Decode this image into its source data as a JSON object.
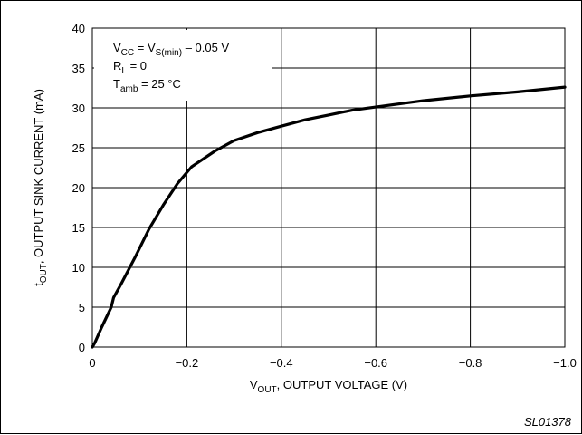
{
  "figure_code": "SL01378",
  "chart_data": {
    "type": "line",
    "xlabel": {
      "main": "V",
      "sub": "OUT",
      "rest": ", OUTPUT VOLTAGE (V)"
    },
    "ylabel": {
      "main": "t",
      "sub": "OUT",
      "rest": ", OUTPUT SINK CURRENT (mA)"
    },
    "xlim": [
      0,
      -1.0
    ],
    "ylim": [
      0,
      40
    ],
    "x_ticks": [
      0,
      -0.2,
      -0.4,
      -0.6,
      -0.8,
      -1.0
    ],
    "x_tick_labels": [
      "0",
      "−0.2",
      "−0.4",
      "−0.6",
      "−0.8",
      "−1.0"
    ],
    "y_ticks": [
      0,
      5,
      10,
      15,
      20,
      25,
      30,
      35,
      40
    ],
    "y_tick_labels": [
      "0",
      "5",
      "10",
      "15",
      "20",
      "25",
      "30",
      "35",
      "40"
    ],
    "grid": true,
    "annotations": [
      {
        "segments": [
          [
            "V",
            ""
          ],
          [
            "CC",
            "sub"
          ],
          [
            " = V",
            ""
          ],
          [
            "S(min)",
            "sub"
          ],
          [
            " – 0.05 V",
            ""
          ]
        ]
      },
      {
        "segments": [
          [
            "R",
            ""
          ],
          [
            "L",
            "sub"
          ],
          [
            " = 0",
            ""
          ]
        ]
      },
      {
        "segments": [
          [
            "T",
            ""
          ],
          [
            "amb",
            "sub"
          ],
          [
            " = 25 °C",
            ""
          ]
        ]
      }
    ],
    "series": [
      {
        "x": [
          0,
          -0.005,
          -0.02,
          -0.04,
          -0.045,
          -0.06,
          -0.09,
          -0.12,
          -0.15,
          -0.18,
          -0.21,
          -0.26,
          -0.3,
          -0.35,
          -0.4,
          -0.45,
          -0.5,
          -0.55,
          -0.6,
          -0.7,
          -0.8,
          -0.9,
          -1.0
        ],
        "y": [
          0,
          0.5,
          2.5,
          5.0,
          6.2,
          7.8,
          11.2,
          14.8,
          17.8,
          20.5,
          22.6,
          24.6,
          25.9,
          26.9,
          27.7,
          28.5,
          29.1,
          29.7,
          30.1,
          30.9,
          31.5,
          32.0,
          32.6
        ]
      }
    ]
  }
}
